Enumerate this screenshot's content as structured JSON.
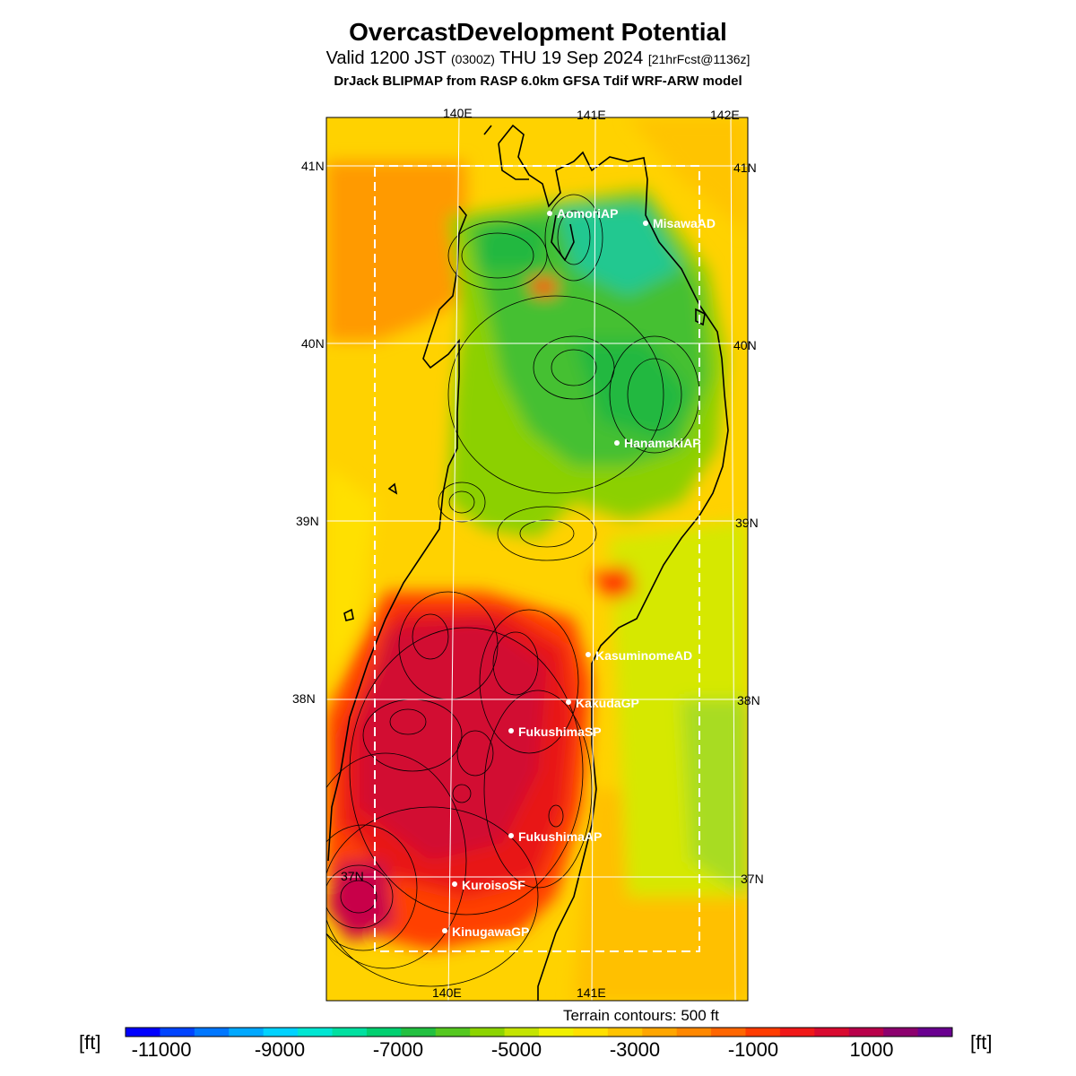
{
  "header": {
    "title": "OvercastDevelopment Potential",
    "subtitle_main": "Valid 1200 JST",
    "subtitle_utc": "(0300Z)",
    "subtitle_date": "THU 19 Sep 2024",
    "subtitle_fcst": "[21hrFcst@1136z]",
    "model_line": "DrJack BLIPMAP from RASP 6.0km GFSA Tdif WRF-ARW model"
  },
  "map": {
    "lon_labels_top": [
      "140E",
      "141E",
      "142E"
    ],
    "lon_labels_bottom": [
      "140E",
      "141E"
    ],
    "lat_labels_left": [
      "41N",
      "40N",
      "39N",
      "38N",
      "37N"
    ],
    "lat_labels_right": [
      "41N",
      "40N",
      "39N",
      "38N",
      "37N"
    ],
    "stations": [
      {
        "name": "AomoriAP"
      },
      {
        "name": "MisawaAD"
      },
      {
        "name": "HanamakiAP"
      },
      {
        "name": "KasuminomeAD"
      },
      {
        "name": "KakudaGP"
      },
      {
        "name": "FukushimaSP"
      },
      {
        "name": "FukushimaAP"
      },
      {
        "name": "KuroisoSF"
      },
      {
        "name": "KinugawaGP"
      }
    ],
    "terrain_note": "Terrain contours: 500 ft"
  },
  "colorbar": {
    "unit_left": "[ft]",
    "unit_right": "[ft]",
    "tick_labels": [
      "-11000",
      "-9000",
      "-7000",
      "-5000",
      "-3000",
      "-1000",
      "1000"
    ],
    "colors": [
      "#0000ff",
      "#0044ff",
      "#0077ff",
      "#00a8ff",
      "#00d2ff",
      "#00e6d2",
      "#00e0a0",
      "#00d070",
      "#22c040",
      "#55c820",
      "#8cd400",
      "#c4e400",
      "#f0f000",
      "#ffe000",
      "#ffc400",
      "#ffa600",
      "#ff8800",
      "#ff6600",
      "#ff3c00",
      "#f01818",
      "#d80a30",
      "#b8004a",
      "#8c006e",
      "#6a0090"
    ]
  }
}
